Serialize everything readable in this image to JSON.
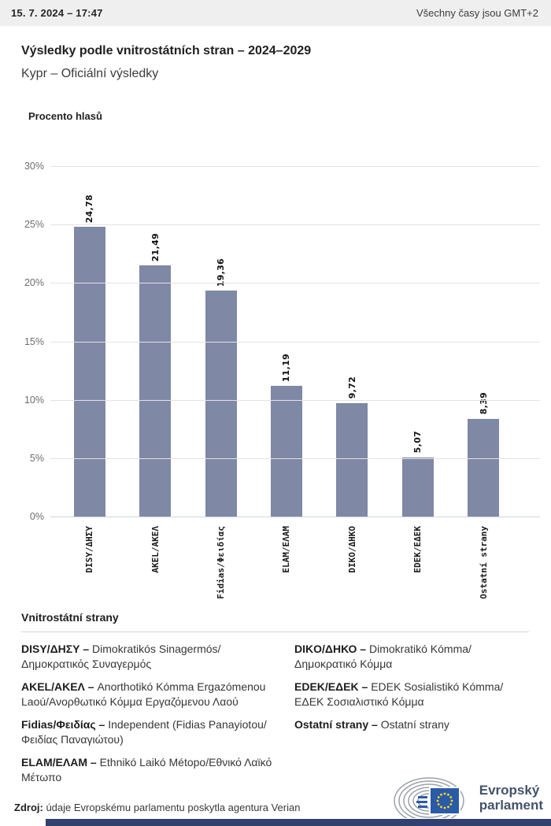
{
  "header": {
    "datetime": "15. 7. 2024 – 17:47",
    "timezone_note": "Všechny časy jsou GMT+2"
  },
  "title": "Výsledky podle vnitrostátních stran – 2024–2029",
  "subtitle": "Kypr – Oficiální výsledky",
  "chart_data": {
    "type": "bar",
    "title": "Procento hlasů",
    "categories": [
      "DISY/ΔΗΣΥ",
      "AKEL/ΑΚΕΛ",
      "Fidias/Φειδίας",
      "ELAM/ΕΛΑΜ",
      "DIKO/ΔΗΚΟ",
      "EDEK/ΕΔΕΚ",
      "Ostatní strany"
    ],
    "values": [
      24.78,
      21.49,
      19.36,
      11.19,
      9.72,
      5.07,
      8.39
    ],
    "value_labels": [
      "24,78",
      "21,49",
      "19,36",
      "11,19",
      "9,72",
      "5,07",
      "8,39"
    ],
    "xlabel": "",
    "ylabel": "Procento hlasů",
    "ylim": [
      0,
      30
    ],
    "yticks": [
      "30%",
      "25%",
      "20%",
      "15%",
      "10%",
      "5%",
      "0%"
    ],
    "grid": true,
    "legend_position": "none",
    "bar_color": "#7F88A5"
  },
  "legend": {
    "heading": "Vnitrostátní strany",
    "columns": [
      [
        {
          "name": "DISY/ΔΗΣΥ –",
          "description": "Dimokratikós Sinagermós/Δημοκρατικός Συναγερμός"
        },
        {
          "name": "AKEL/ΑΚΕΛ –",
          "description": "Anorthotikó Kómma Ergazómenou Laoú/Ανορθωτικό Κόμμα Εργαζόμενου Λαού"
        },
        {
          "name": "Fidias/Φειδίας –",
          "description": "Independent (Fidias Panayiotou/Φειδίας Παναγιώτου)"
        },
        {
          "name": "ELAM/ΕΛΑΜ –",
          "description": "Ethnikó Laikó Métopo/Εθνικό Λαϊκό Μέτωπο"
        }
      ],
      [
        {
          "name": "DIKO/ΔΗΚΟ –",
          "description": "Dimokratikó Kómma/Δημοκρατικό Κόμμα"
        },
        {
          "name": "EDEK/ΕΔΕΚ –",
          "description": "EDEK Sosialistikó Kómma/ΕΔΕΚ Σοσιαλιστικό Κόμμα"
        },
        {
          "name": "Ostatní strany –",
          "description": "Ostatní strany"
        }
      ]
    ]
  },
  "footer": {
    "source_label": "Zdroj:",
    "source_text": " údaje Evropskému parlamentu poskytla agentura Verian",
    "logo_line1": "Evropský",
    "logo_line2": "parlament"
  },
  "colors": {
    "bar": "#7F88A5",
    "topbar_bg": "#efefef",
    "gridline": "#e3e3e3",
    "baseline": "#ccd4e6",
    "eu_flag_blue": "#2a5ba8",
    "eu_star_yellow": "#ffd617",
    "logo_text": "#44526b",
    "bottom_bar": "#32406f"
  }
}
